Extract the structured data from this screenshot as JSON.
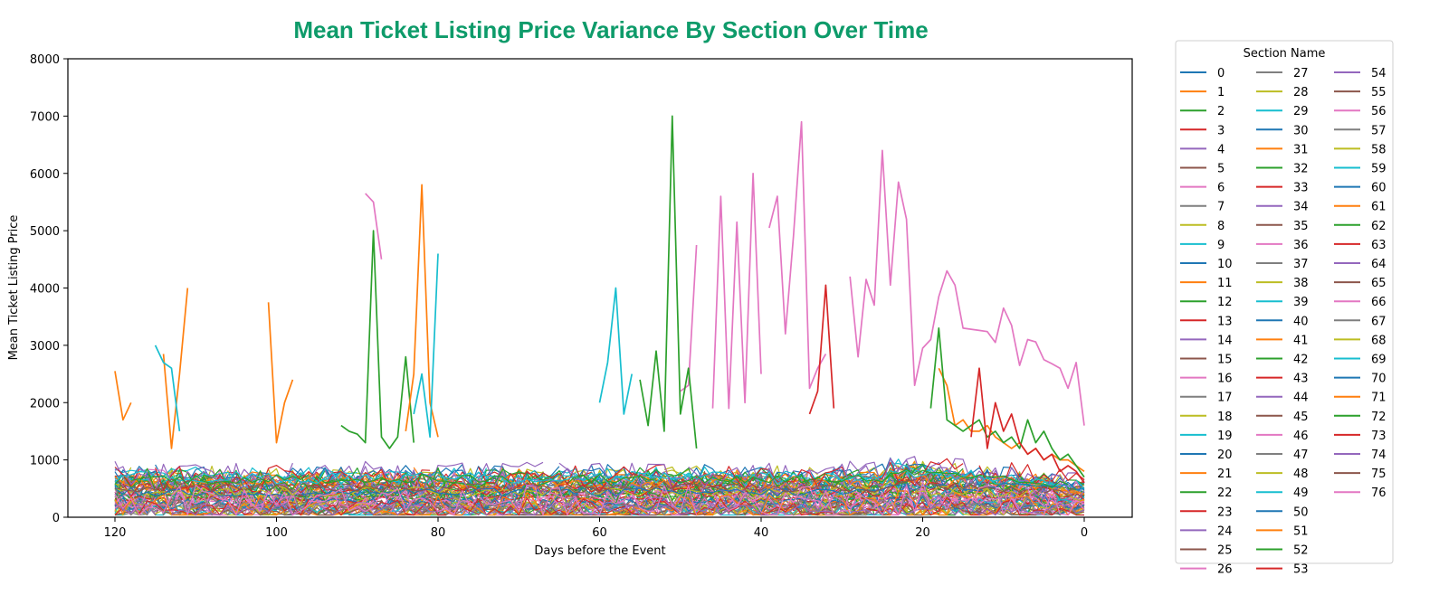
{
  "title_color": "#0e9b6a",
  "chart_data": {
    "type": "line",
    "title": "Mean Ticket Listing Price Variance By Section Over Time",
    "xlabel": "Days before the Event",
    "ylabel": "Mean Ticket Listing Price",
    "xlim": [
      120,
      0
    ],
    "ylim": [
      0,
      8000
    ],
    "xticks": [
      120,
      100,
      80,
      60,
      40,
      20,
      0
    ],
    "yticks": [
      0,
      1000,
      2000,
      3000,
      4000,
      5000,
      6000,
      7000,
      8000
    ],
    "legend": {
      "title": "Section Name",
      "placement": "outside-right",
      "columns": 3
    },
    "palette": [
      "#1f77b4",
      "#ff7f0e",
      "#2ca02c",
      "#d62728",
      "#9467bd",
      "#8c564b",
      "#e377c2",
      "#7f7f7f",
      "#bcbd22",
      "#17becf"
    ],
    "series_names": [
      "0",
      "1",
      "2",
      "3",
      "4",
      "5",
      "6",
      "7",
      "8",
      "9",
      "10",
      "11",
      "12",
      "13",
      "14",
      "15",
      "16",
      "17",
      "18",
      "19",
      "20",
      "21",
      "22",
      "23",
      "24",
      "25",
      "26",
      "27",
      "28",
      "29",
      "30",
      "31",
      "32",
      "33",
      "34",
      "35",
      "36",
      "37",
      "38",
      "39",
      "40",
      "41",
      "42",
      "43",
      "44",
      "45",
      "46",
      "47",
      "48",
      "49",
      "50",
      "51",
      "52",
      "53",
      "54",
      "55",
      "56",
      "57",
      "58",
      "59",
      "60",
      "61",
      "62",
      "63",
      "64",
      "65",
      "66",
      "67",
      "68",
      "69",
      "70",
      "71",
      "72",
      "73",
      "74",
      "75",
      "76"
    ],
    "highlighted_series": [
      {
        "name": "66",
        "x": [
          39,
          38,
          37,
          36,
          35,
          34,
          33,
          32,
          31,
          30,
          29,
          28,
          27,
          26,
          25,
          24,
          23,
          22,
          21,
          20,
          19,
          18,
          17,
          16,
          15,
          14,
          13,
          12,
          11,
          10,
          9,
          8,
          7,
          6,
          5,
          4,
          3,
          2,
          1,
          0
        ],
        "y": [
          5050,
          5600,
          3200,
          4900,
          6900,
          2250,
          2600,
          2850,
          null,
          null,
          4200,
          2800,
          4150,
          3700,
          6400,
          4050,
          5850,
          5200,
          2300,
          2950,
          3100,
          3850,
          4300,
          4050,
          3300,
          3280,
          3260,
          3240,
          3050,
          3650,
          3350,
          2650,
          3100,
          3060,
          2750,
          2680,
          2600,
          2250,
          2700,
          1600
        ]
      },
      {
        "name": "46",
        "x": [
          50,
          49,
          48,
          47,
          46,
          45,
          44,
          43,
          42,
          41,
          40
        ],
        "y": [
          2200,
          2300,
          4750,
          null,
          1900,
          5600,
          1900,
          5150,
          2000,
          6000,
          2500
        ]
      },
      {
        "name": "6",
        "x": [
          89,
          88,
          87
        ],
        "y": [
          5650,
          5500,
          4500
        ]
      },
      {
        "name": "52",
        "x": [
          55,
          54,
          53,
          52,
          51,
          50,
          49,
          48
        ],
        "y": [
          2400,
          1600,
          2900,
          1500,
          7000,
          1800,
          2600,
          1200
        ]
      },
      {
        "name": "12",
        "x": [
          92,
          91,
          90,
          89,
          88,
          87,
          86,
          85,
          84,
          83
        ],
        "y": [
          1600,
          1500,
          1450,
          1300,
          5000,
          1400,
          1200,
          1400,
          2800,
          1300
        ]
      },
      {
        "name": "61",
        "x": [
          84,
          83,
          82,
          81,
          80
        ],
        "y": [
          1500,
          2500,
          5800,
          2000,
          1400
        ]
      },
      {
        "name": "9",
        "x": [
          83,
          82,
          81,
          80
        ],
        "y": [
          1800,
          2500,
          1400,
          4600
        ]
      },
      {
        "name": "39",
        "x": [
          60,
          59,
          58,
          57,
          56
        ],
        "y": [
          2000,
          2700,
          4000,
          1800,
          2500
        ]
      },
      {
        "name": "21",
        "x": [
          120,
          119,
          118
        ],
        "y": [
          2550,
          1700,
          2000
        ]
      },
      {
        "name": "11",
        "x": [
          114,
          113,
          112,
          111
        ],
        "y": [
          2850,
          1200,
          2500,
          4000
        ]
      },
      {
        "name": "31",
        "x": [
          101,
          100,
          99,
          98
        ],
        "y": [
          3750,
          1300,
          2000,
          2400
        ]
      },
      {
        "name": "29",
        "x": [
          115,
          114,
          113,
          112
        ],
        "y": [
          3000,
          2700,
          2600,
          1500
        ]
      },
      {
        "name": "33",
        "x": [
          34,
          33,
          32,
          31
        ],
        "y": [
          1800,
          2200,
          4050,
          1900
        ]
      },
      {
        "name": "41",
        "x": [
          18,
          17,
          16,
          15,
          14,
          13,
          12,
          11,
          10,
          9,
          8,
          7,
          6,
          5,
          4,
          3,
          2,
          1,
          0
        ],
        "y": [
          2600,
          2300,
          1600,
          1700,
          1500,
          1500,
          1600,
          1400,
          1300,
          1200,
          1300,
          1100,
          1200,
          1000,
          1100,
          1000,
          1000,
          900,
          800
        ]
      },
      {
        "name": "22",
        "x": [
          19,
          18,
          17,
          16,
          15,
          14,
          13,
          12,
          11,
          10,
          9,
          8,
          7,
          6,
          5,
          4,
          3,
          2,
          1,
          0
        ],
        "y": [
          1900,
          3300,
          1700,
          1600,
          1500,
          1600,
          1700,
          1400,
          1500,
          1300,
          1400,
          1200,
          1700,
          1300,
          1500,
          1200,
          1000,
          1100,
          900,
          700
        ]
      },
      {
        "name": "43",
        "x": [
          14,
          13,
          12,
          11,
          10,
          9,
          8,
          7,
          6,
          5,
          4,
          3,
          2,
          1,
          0
        ],
        "y": [
          1400,
          2600,
          1200,
          2000,
          1500,
          1800,
          1300,
          1100,
          1200,
          1000,
          1100,
          800,
          900,
          800,
          600
        ]
      }
    ]
  }
}
